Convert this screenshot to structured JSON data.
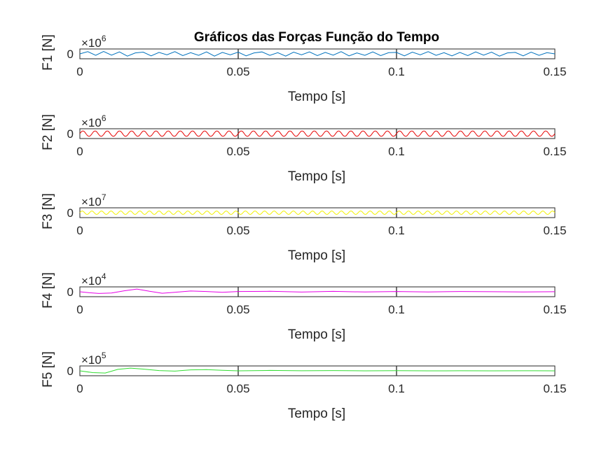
{
  "figure": {
    "title": "Gráficos das Forças Função do Tempo"
  },
  "chart_data": [
    {
      "type": "line",
      "title": "Gráficos das Forças Função do Tempo",
      "xlabel": "Tempo [s]",
      "ylabel": "F1 [N]",
      "xlim": [
        0,
        0.15
      ],
      "xticks": [
        "0",
        "0.05",
        "0.1",
        "0.15"
      ],
      "yticks": [
        "0"
      ],
      "y_multiplier": "×10",
      "y_exponent": "6",
      "grid": "vertical",
      "series": [
        {
          "color": "#0072BD",
          "x": [
            0,
            0.0025,
            0.005,
            0.0075,
            0.01,
            0.0125,
            0.015,
            0.0175,
            0.02,
            0.0225,
            0.025,
            0.0275,
            0.03,
            0.0325,
            0.035,
            0.0375,
            0.04,
            0.0425,
            0.045,
            0.0475,
            0.05,
            0.0525,
            0.055,
            0.0575,
            0.06,
            0.0625,
            0.065,
            0.0675,
            0.07,
            0.0725,
            0.075,
            0.0775,
            0.08,
            0.0825,
            0.085,
            0.0875,
            0.09,
            0.0925,
            0.095,
            0.0975,
            0.1,
            0.1025,
            0.105,
            0.1075,
            0.11,
            0.1125,
            0.115,
            0.1175,
            0.12,
            0.1225,
            0.125,
            0.1275,
            0.13,
            0.1325,
            0.135,
            0.1375,
            0.14,
            0.1425,
            0.145,
            0.1475,
            0.15
          ],
          "y": [
            0,
            0.45,
            -0.3,
            0.5,
            -0.25,
            0.4,
            -0.45,
            0.2,
            0.35,
            -0.4,
            0.3,
            -0.2,
            0.45,
            -0.35,
            0.25,
            -0.3,
            0.4,
            -0.45,
            0.3,
            -0.2,
            0.35,
            -0.4,
            0.2,
            0.4,
            -0.3,
            0.25,
            -0.45,
            0.35,
            -0.2,
            0.4,
            -0.35,
            0.3,
            -0.25,
            0.45,
            -0.4,
            0.2,
            -0.3,
            0.4,
            -0.35,
            0.25,
            0.3,
            -0.4,
            0.35,
            -0.2,
            0.45,
            -0.3,
            0.25,
            -0.4,
            0.3,
            -0.35,
            0.4,
            -0.25,
            0.35,
            -0.45,
            0.2,
            0.3,
            -0.4,
            0.35,
            -0.3,
            0.25,
            0
          ],
          "unit_note": "values in units of 10^6 N"
        }
      ]
    },
    {
      "type": "line",
      "xlabel": "Tempo [s]",
      "ylabel": "F2 [N]",
      "xlim": [
        0,
        0.15
      ],
      "xticks": [
        "0",
        "0.05",
        "0.1",
        "0.15"
      ],
      "yticks": [
        "0"
      ],
      "y_multiplier": "×10",
      "y_exponent": "6",
      "grid": "vertical",
      "series": [
        {
          "color": "#E60000",
          "frequency_hz": 260,
          "amplitude": 0.55,
          "x_range": [
            0,
            0.15
          ]
        }
      ]
    },
    {
      "type": "line",
      "xlabel": "Tempo [s]",
      "ylabel": "F3 [N]",
      "xlim": [
        0,
        0.15
      ],
      "xticks": [
        "0",
        "0.05",
        "0.1",
        "0.15"
      ],
      "yticks": [
        "0"
      ],
      "y_multiplier": "×10",
      "y_exponent": "7",
      "grid": "vertical",
      "series": [
        {
          "color": "#F2F200",
          "frequency_hz": 330,
          "amplitude": 0.35,
          "x_range": [
            0,
            0.15
          ]
        }
      ]
    },
    {
      "type": "line",
      "xlabel": "Tempo [s]",
      "ylabel": "F4 [N]",
      "xlim": [
        0,
        0.15
      ],
      "xticks": [
        "0",
        "0.05",
        "0.1",
        "0.15"
      ],
      "yticks": [
        "0"
      ],
      "y_multiplier": "×10",
      "y_exponent": "4",
      "grid": "vertical",
      "series": [
        {
          "color": "#E600E6",
          "x": [
            0,
            0.003,
            0.006,
            0.01,
            0.014,
            0.018,
            0.022,
            0.026,
            0.03,
            0.035,
            0.04,
            0.045,
            0.05,
            0.06,
            0.07,
            0.08,
            0.09,
            0.1,
            0.11,
            0.12,
            0.13,
            0.14,
            0.15
          ],
          "y": [
            0,
            -0.2,
            -0.35,
            -0.25,
            0.2,
            0.55,
            0.1,
            -0.3,
            -0.1,
            0.15,
            0.05,
            -0.1,
            0.05,
            0.1,
            -0.05,
            0.08,
            -0.04,
            0.06,
            -0.03,
            0.05,
            0.02,
            -0.03,
            0.02
          ]
        }
      ]
    },
    {
      "type": "line",
      "xlabel": "Tempo [s]",
      "ylabel": "F5 [N]",
      "xlim": [
        0,
        0.15
      ],
      "xticks": [
        "0",
        "0.05",
        "0.1",
        "0.15"
      ],
      "yticks": [
        "0"
      ],
      "y_multiplier": "×10",
      "y_exponent": "5",
      "grid": "vertical",
      "series": [
        {
          "color": "#33DD33",
          "x": [
            0,
            0.004,
            0.008,
            0.012,
            0.016,
            0.02,
            0.025,
            0.03,
            0.035,
            0.04,
            0.045,
            0.05,
            0.06,
            0.07,
            0.08,
            0.09,
            0.1,
            0.11,
            0.12,
            0.13,
            0.14,
            0.15
          ],
          "y": [
            0,
            -0.35,
            -0.45,
            0.3,
            0.55,
            0.35,
            0.05,
            -0.05,
            0.2,
            0.25,
            0.1,
            0.0,
            0.08,
            0.02,
            0.05,
            0.0,
            0.03,
            0.0,
            0.02,
            0.0,
            0.01,
            0.0
          ]
        }
      ]
    }
  ]
}
